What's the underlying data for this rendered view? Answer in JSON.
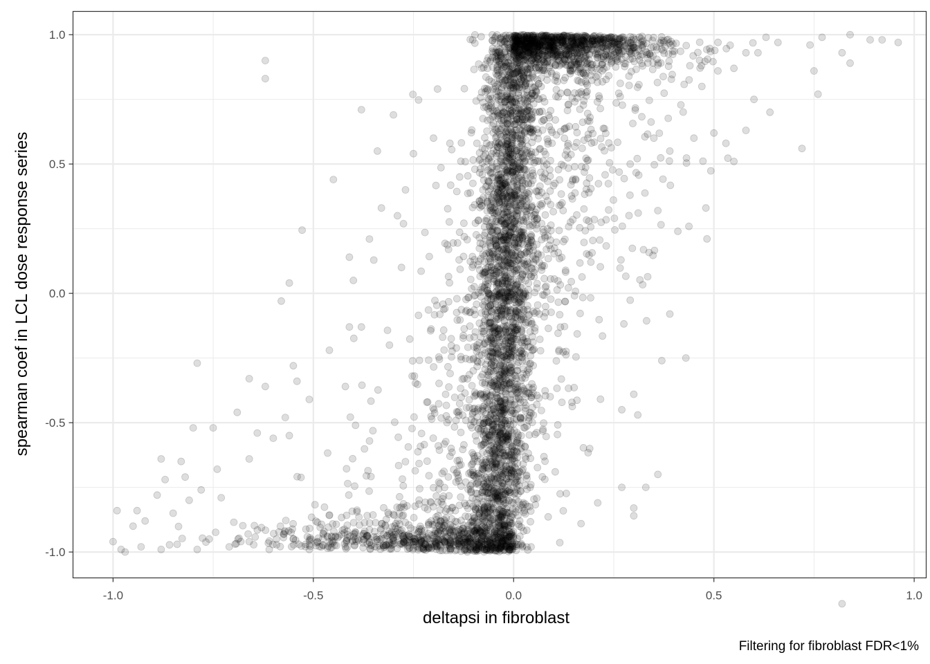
{
  "chart_data": {
    "type": "scatter",
    "title": "",
    "xlabel": "deltapsi in fibroblast",
    "ylabel": "spearman coef in LCL dose response series",
    "caption": "Filtering for fibroblast FDR<1%",
    "xlim": [
      -1.1,
      1.03
    ],
    "ylim": [
      -1.1,
      1.09
    ],
    "x_ticks": [
      -1.0,
      -0.5,
      0.0,
      0.5,
      1.0
    ],
    "x_tick_labels": [
      "-1.0",
      "-0.5",
      "0.0",
      "0.5",
      "1.0"
    ],
    "y_ticks": [
      -1.0,
      -0.5,
      0.0,
      0.5,
      1.0
    ],
    "y_tick_labels": [
      "-1.0",
      "-0.5",
      "0.0",
      "0.5",
      "1.0"
    ],
    "grid": true,
    "point_color": "#000000",
    "point_alpha": 0.13,
    "panel_border_color": "#333333",
    "grid_color": "#ebebeb",
    "points": [
      [
        -0.62,
        0.9
      ],
      [
        -0.62,
        0.83
      ],
      [
        -0.38,
        0.71
      ],
      [
        -0.34,
        0.55
      ],
      [
        -0.45,
        0.44
      ],
      [
        -0.27,
        0.4
      ],
      [
        -0.3,
        0.69
      ],
      [
        -0.25,
        0.54
      ],
      [
        -0.2,
        0.6
      ],
      [
        -0.19,
        0.79
      ],
      [
        -0.36,
        0.21
      ],
      [
        -0.33,
        0.33
      ],
      [
        -0.29,
        0.3
      ],
      [
        -0.41,
        0.14
      ],
      [
        -0.4,
        0.05
      ],
      [
        -0.28,
        0.1
      ],
      [
        -0.56,
        0.04
      ],
      [
        -0.58,
        -0.03
      ],
      [
        -0.41,
        -0.13
      ],
      [
        -0.38,
        -0.13
      ],
      [
        -0.31,
        -0.2
      ],
      [
        -0.46,
        -0.22
      ],
      [
        -0.79,
        -0.27
      ],
      [
        -0.55,
        -0.28
      ],
      [
        -0.42,
        -0.36
      ],
      [
        -0.66,
        -0.33
      ],
      [
        -0.62,
        -0.36
      ],
      [
        -0.51,
        -0.41
      ],
      [
        -0.8,
        -0.52
      ],
      [
        -0.75,
        -0.52
      ],
      [
        -0.69,
        -0.46
      ],
      [
        -0.57,
        -0.48
      ],
      [
        -0.64,
        -0.54
      ],
      [
        -0.6,
        -0.56
      ],
      [
        -0.56,
        -0.55
      ],
      [
        -0.88,
        -0.64
      ],
      [
        -0.83,
        -0.65
      ],
      [
        -0.66,
        -0.64
      ],
      [
        -0.74,
        -0.68
      ],
      [
        -0.87,
        -0.72
      ],
      [
        -0.82,
        -0.71
      ],
      [
        -0.78,
        -0.76
      ],
      [
        -0.73,
        -0.79
      ],
      [
        -0.89,
        -0.78
      ],
      [
        -0.94,
        -0.84
      ],
      [
        -0.99,
        -0.84
      ],
      [
        -0.85,
        -0.85
      ],
      [
        -0.81,
        -0.8
      ],
      [
        -0.95,
        -0.9
      ],
      [
        -0.92,
        -0.88
      ],
      [
        -1.0,
        -0.96
      ],
      [
        -0.98,
        -0.99
      ],
      [
        -0.97,
        -1.0
      ],
      [
        -0.93,
        -0.98
      ],
      [
        -0.88,
        -0.99
      ],
      [
        -0.84,
        -0.97
      ],
      [
        -0.79,
        -0.99
      ],
      [
        -0.76,
        -0.95
      ],
      [
        -0.71,
        -0.98
      ],
      [
        -0.66,
        -0.96
      ],
      [
        -0.61,
        -0.99
      ],
      [
        -0.55,
        -0.95
      ],
      [
        -0.51,
        -0.99
      ],
      [
        -0.46,
        -0.96
      ],
      [
        -0.42,
        -0.98
      ],
      [
        0.84,
        1.0
      ],
      [
        0.89,
        0.98
      ],
      [
        0.92,
        0.98
      ],
      [
        0.96,
        0.97
      ],
      [
        0.77,
        0.99
      ],
      [
        0.82,
        0.93
      ],
      [
        0.84,
        0.89
      ],
      [
        0.74,
        0.96
      ],
      [
        0.75,
        0.86
      ],
      [
        0.72,
        0.56
      ],
      [
        0.66,
        0.97
      ],
      [
        0.63,
        0.99
      ],
      [
        0.61,
        0.93
      ],
      [
        0.58,
        0.93
      ],
      [
        0.55,
        0.87
      ],
      [
        0.58,
        0.63
      ],
      [
        0.55,
        0.51
      ],
      [
        0.6,
        0.75
      ],
      [
        0.64,
        0.7
      ],
      [
        0.48,
        0.33
      ],
      [
        0.41,
        0.24
      ],
      [
        0.36,
        0.32
      ],
      [
        0.43,
        -0.25
      ],
      [
        0.37,
        -0.26
      ],
      [
        0.39,
        -0.08
      ],
      [
        0.3,
        -0.39
      ],
      [
        0.31,
        -0.47
      ],
      [
        0.27,
        -0.45
      ],
      [
        0.27,
        -0.75
      ],
      [
        0.3,
        -0.83
      ],
      [
        0.3,
        -0.86
      ],
      [
        0.33,
        -0.75
      ],
      [
        0.36,
        -0.7
      ],
      [
        0.21,
        -0.81
      ],
      [
        0.19,
        -0.6
      ],
      [
        0.82,
        -1.2
      ],
      [
        0.53,
        0.58
      ],
      [
        0.5,
        0.62
      ],
      [
        0.45,
        0.6
      ],
      [
        0.47,
        0.8
      ],
      [
        0.76,
        0.77
      ],
      [
        0.51,
        0.86
      ],
      [
        0.44,
        0.88
      ],
      [
        0.39,
        0.55
      ],
      [
        0.35,
        0.6
      ]
    ],
    "generated_density": {
      "seed": 20240517,
      "count": 5200
    }
  }
}
